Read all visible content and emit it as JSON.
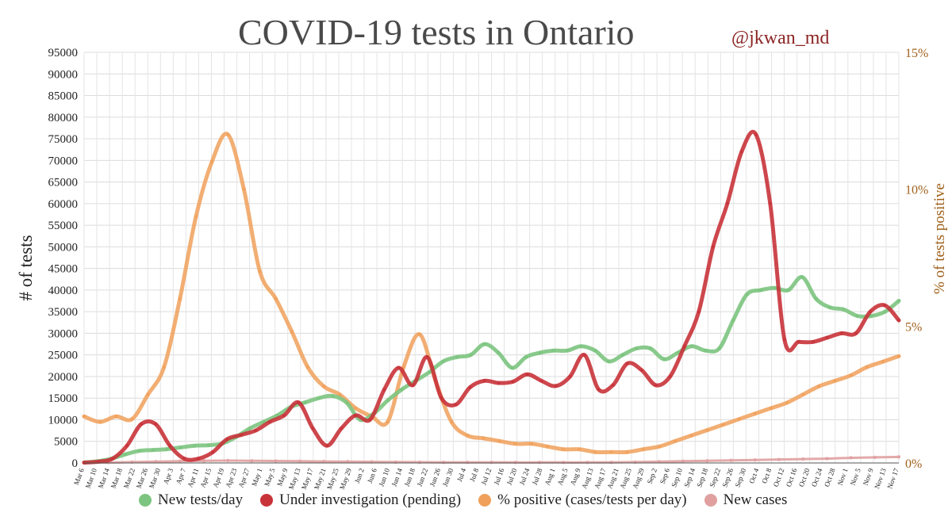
{
  "chart_data": {
    "type": "line",
    "title": "COVID-19 tests in Ontario",
    "subtitle": "@jkwan_md",
    "ylabel": "# of tests",
    "y2label": "% of tests positive",
    "ylim": [
      0,
      95000
    ],
    "y2lim": [
      0,
      15
    ],
    "yticks": [
      "0",
      "5000",
      "10000",
      "15000",
      "20000",
      "25000",
      "30000",
      "35000",
      "40000",
      "45000",
      "50000",
      "55000",
      "60000",
      "65000",
      "70000",
      "75000",
      "80000",
      "85000",
      "90000",
      "95000"
    ],
    "y2ticks": [
      "0%",
      "5%",
      "10%",
      "15%"
    ],
    "xticks": [
      "Mar 6",
      "Mar 10",
      "Mar 14",
      "Mar 18",
      "Mar 22",
      "Mar 26",
      "Mar 30",
      "Apr 3",
      "Apr 7",
      "Apr 11",
      "Apr 15",
      "Apr 19",
      "Apr 23",
      "Apr 27",
      "May 1",
      "May 5",
      "May 9",
      "May 13",
      "May 17",
      "May 21",
      "May 25",
      "May 29",
      "Jun 2",
      "Jun 6",
      "Jun 10",
      "Jun 14",
      "Jun 18",
      "Jun 22",
      "Jun 26",
      "Jun 30",
      "Jul 4",
      "Jul 8",
      "Jul 12",
      "Jul 16",
      "Jul 20",
      "Jul 24",
      "Jul 28",
      "Aug 1",
      "Aug 5",
      "Aug 9",
      "Aug 13",
      "Aug 17",
      "Aug 21",
      "Aug 25",
      "Aug 29",
      "Sep 2",
      "Sep 6",
      "Sep 10",
      "Sep 14",
      "Sep 18",
      "Sep 22",
      "Sep 26",
      "Sep 30",
      "Oct 4",
      "Oct 8",
      "Oct 12",
      "Oct 16",
      "Oct 20",
      "Oct 24",
      "Oct 28",
      "Nov 1",
      "Nov 5",
      "Nov 9",
      "Nov 13",
      "Nov 17"
    ],
    "grid": true,
    "legend_position": "bottom",
    "series": [
      {
        "name": "New tests/day",
        "axis": "left",
        "color": "#7cc47f",
        "values": [
          100,
          400,
          1000,
          2000,
          2800,
          3000,
          3200,
          3600,
          4000,
          4100,
          4500,
          6000,
          8000,
          9500,
          11000,
          13000,
          14000,
          15000,
          15500,
          14000,
          10000,
          11500,
          14500,
          17000,
          19000,
          21000,
          23500,
          24500,
          25000,
          27500,
          25500,
          22000,
          24500,
          25500,
          26000,
          26000,
          27000,
          26000,
          23500,
          25000,
          26500,
          26500,
          24000,
          25500,
          27000,
          26000,
          26500,
          33000,
          39000,
          40000,
          40500,
          40000,
          43000,
          38000,
          36000,
          35500,
          34000,
          34000,
          35000,
          37500
        ]
      },
      {
        "name": "Under investigation (pending)",
        "axis": "left",
        "color": "#c8333a",
        "values": [
          100,
          300,
          1000,
          4000,
          9000,
          9000,
          4000,
          1000,
          1000,
          2500,
          5500,
          6500,
          7500,
          9500,
          11000,
          14000,
          8000,
          4000,
          8000,
          11000,
          10000,
          17000,
          22000,
          18000,
          24500,
          15000,
          13500,
          17500,
          19000,
          18500,
          18800,
          20500,
          19000,
          17800,
          20000,
          25000,
          17000,
          18000,
          23000,
          21500,
          18000,
          20000,
          27000,
          35000,
          50000,
          60000,
          72000,
          76000,
          60000,
          28500,
          28000,
          28000,
          29000,
          30000,
          30000,
          35000,
          36500,
          33000
        ]
      },
      {
        "name": "% positive (cases/tests per day)",
        "axis": "right",
        "color": "#f0a05a",
        "values": [
          1.7,
          1.5,
          1.7,
          1.6,
          2.5,
          3.5,
          6.0,
          9.0,
          11.0,
          12.0,
          10.0,
          7.0,
          6.0,
          4.8,
          3.5,
          2.8,
          2.5,
          2.0,
          1.7,
          1.5,
          3.5,
          4.7,
          3.0,
          1.5,
          1.0,
          0.9,
          0.8,
          0.7,
          0.7,
          0.6,
          0.5,
          0.5,
          0.4,
          0.4,
          0.4,
          0.5,
          0.6,
          0.8,
          1.0,
          1.2,
          1.4,
          1.6,
          1.8,
          2.0,
          2.2,
          2.5,
          2.8,
          3.0,
          3.2,
          3.5,
          3.7,
          3.9
        ]
      },
      {
        "name": "New cases",
        "axis": "left",
        "color": "#e0a0a0",
        "values": [
          50,
          100,
          200,
          300,
          400,
          500,
          550,
          500,
          450,
          400,
          350,
          300,
          250,
          200,
          180,
          150,
          150,
          150,
          120,
          120,
          120,
          120,
          150,
          200,
          300,
          400,
          500,
          600,
          700,
          800,
          900,
          1000,
          1200,
          1300,
          1400
        ]
      }
    ]
  },
  "legend": {
    "tests": "New tests/day",
    "pending": "Under investigation (pending)",
    "positive": "% positive (cases/tests per day)",
    "cases": "New cases"
  }
}
